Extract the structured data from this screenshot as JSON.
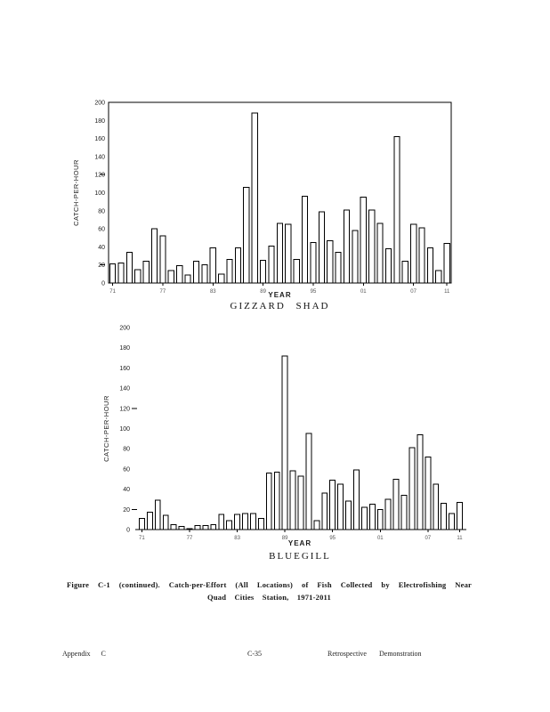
{
  "figure_caption": {
    "line1": "Figure C-1 (continued). Catch-per-Effort (All Locations) of Fish Collected by Electrofishing Near",
    "line2": "Quad Cities Station, 1971-2011"
  },
  "footer": {
    "left_label": "Appendix C",
    "page_number": "C-35",
    "right_label": "Retrospective Demonstration"
  },
  "chart_data": [
    {
      "type": "bar",
      "title": "GIZZARD SHAD",
      "xlabel": "YEAR",
      "ylabel": "CATCH-PER-HOUR",
      "ylim": [
        0,
        200
      ],
      "ytick_step": 20,
      "grid": false,
      "legend": false,
      "frame": "box",
      "bar_fill": "#ffffff",
      "bar_stroke": "#000000",
      "axis_dash_values": [
        20,
        120
      ],
      "categories": [
        "71",
        "72",
        "73",
        "74",
        "75",
        "76",
        "77",
        "78",
        "79",
        "80",
        "81",
        "82",
        "83",
        "84",
        "85",
        "86",
        "87",
        "88",
        "89",
        "90",
        "91",
        "92",
        "93",
        "94",
        "95",
        "96",
        "97",
        "98",
        "99",
        "00",
        "01",
        "02",
        "03",
        "04",
        "05",
        "06",
        "07",
        "08",
        "09",
        "10",
        "11"
      ],
      "values": [
        21,
        22,
        34,
        15,
        24,
        60,
        52,
        14,
        19,
        9,
        24,
        20,
        39,
        10,
        26,
        39,
        106,
        188,
        25,
        41,
        66,
        65,
        26,
        96,
        45,
        79,
        47,
        34,
        81,
        58,
        95,
        81,
        66,
        38,
        162,
        24,
        65,
        61,
        39,
        14,
        44
      ],
      "x_tick_labels": [
        "71",
        "77",
        "83",
        "89",
        "95",
        "01",
        "07",
        "11"
      ],
      "x_tick_indices": [
        0,
        6,
        12,
        18,
        24,
        30,
        36,
        40
      ]
    },
    {
      "type": "bar",
      "title": "BLUEGILL",
      "xlabel": "YEAR",
      "ylabel": "CATCH-PER-HOUR",
      "ylim": [
        0,
        200
      ],
      "ytick_step": 20,
      "grid": false,
      "legend": false,
      "frame": "baseline",
      "bar_fill": "#ffffff",
      "bar_stroke": "#000000",
      "axis_dash_values": [
        20,
        120
      ],
      "categories": [
        "71",
        "72",
        "73",
        "74",
        "75",
        "76",
        "77",
        "78",
        "79",
        "80",
        "81",
        "82",
        "83",
        "84",
        "85",
        "86",
        "87",
        "88",
        "89",
        "90",
        "91",
        "92",
        "93",
        "94",
        "95",
        "96",
        "97",
        "98",
        "99",
        "00",
        "01",
        "02",
        "03",
        "04",
        "05",
        "06",
        "07",
        "08",
        "09",
        "10",
        "11"
      ],
      "values": [
        11,
        17,
        29,
        14,
        5,
        3,
        1,
        4,
        4,
        5,
        15,
        9,
        15,
        16,
        16,
        11,
        56,
        57,
        172,
        58,
        53,
        95,
        9,
        36,
        49,
        45,
        28,
        59,
        22,
        25,
        20,
        30,
        50,
        34,
        81,
        94,
        72,
        45,
        26,
        16,
        27
      ],
      "x_tick_labels": [
        "71",
        "77",
        "83",
        "89",
        "95",
        "01",
        "07",
        "11"
      ],
      "x_tick_indices": [
        0,
        6,
        12,
        18,
        24,
        30,
        36,
        40
      ]
    }
  ]
}
